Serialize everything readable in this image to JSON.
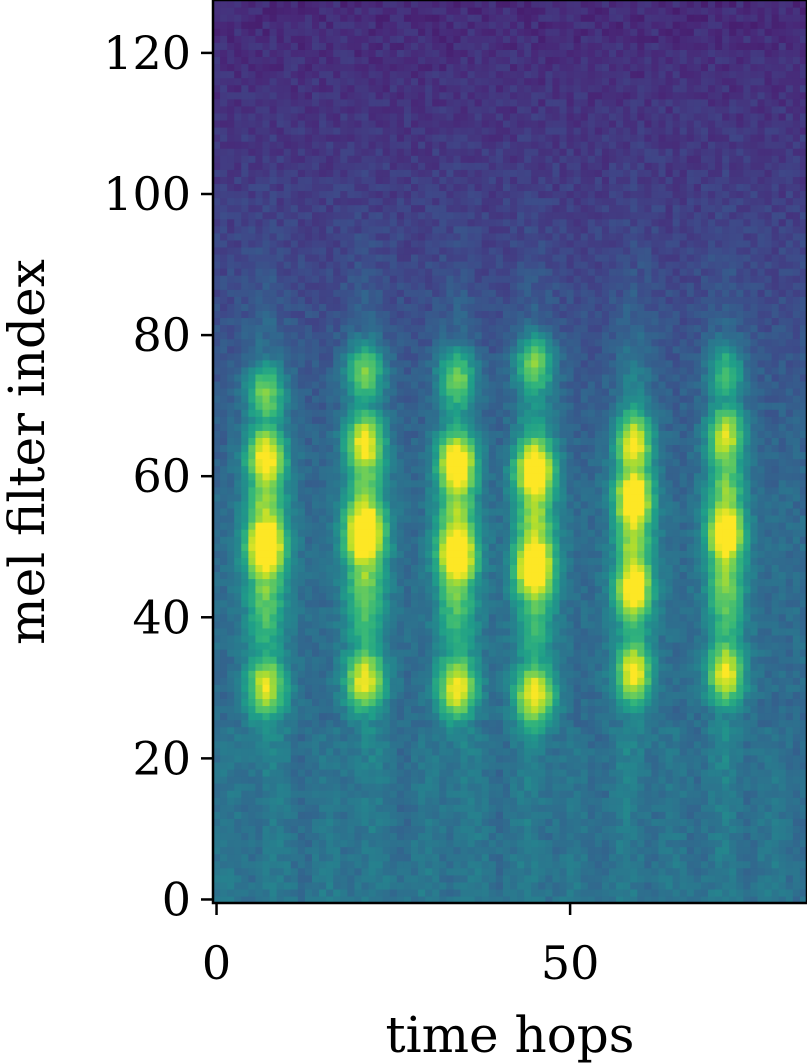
{
  "chart_data": {
    "type": "heatmap",
    "title": "",
    "xlabel": "time hops",
    "ylabel": "mel filter index",
    "xlim": [
      -0.5,
      83.5
    ],
    "ylim": [
      -0.5,
      127.5
    ],
    "x_ticks": [
      0,
      50
    ],
    "y_ticks": [
      0,
      20,
      40,
      60,
      80,
      100,
      120
    ],
    "x_tick_labels": [
      "0",
      "50"
    ],
    "y_tick_labels": [
      "0",
      "20",
      "40",
      "60",
      "80",
      "100",
      "120"
    ],
    "grid": false,
    "legend": "none",
    "colormap": "viridis",
    "n_time_hops": 84,
    "n_mel_filters": 128,
    "value_range": [
      0,
      1
    ],
    "colors": {
      "viridis_stops": [
        "#440154",
        "#482878",
        "#3e4989",
        "#31688e",
        "#26828e",
        "#1f9e89",
        "#35b779",
        "#6ece58",
        "#b5de2b",
        "#fde725"
      ]
    },
    "bursts": [
      {
        "center": 7,
        "width": 2.8,
        "peaks": [
          {
            "mel": 30,
            "value": 0.9
          },
          {
            "mel": 50,
            "value": 0.92
          },
          {
            "mel": 63,
            "value": 0.88
          },
          {
            "mel": 72,
            "value": 0.78
          }
        ]
      },
      {
        "center": 21,
        "width": 2.8,
        "peaks": [
          {
            "mel": 31,
            "value": 0.93
          },
          {
            "mel": 52,
            "value": 0.95
          },
          {
            "mel": 65,
            "value": 0.88
          },
          {
            "mel": 75,
            "value": 0.8
          }
        ]
      },
      {
        "center": 34,
        "width": 2.8,
        "peaks": [
          {
            "mel": 30,
            "value": 0.95
          },
          {
            "mel": 49,
            "value": 0.92
          },
          {
            "mel": 62,
            "value": 0.95
          },
          {
            "mel": 74,
            "value": 0.8
          }
        ]
      },
      {
        "center": 45,
        "width": 2.8,
        "peaks": [
          {
            "mel": 29,
            "value": 0.98
          },
          {
            "mel": 47,
            "value": 0.95
          },
          {
            "mel": 61,
            "value": 0.98
          },
          {
            "mel": 76,
            "value": 0.82
          }
        ]
      },
      {
        "center": 59,
        "width": 2.6,
        "peaks": [
          {
            "mel": 32,
            "value": 0.93
          },
          {
            "mel": 44,
            "value": 0.85
          },
          {
            "mel": 57,
            "value": 0.92
          },
          {
            "mel": 65,
            "value": 0.88
          }
        ]
      },
      {
        "center": 72,
        "width": 2.6,
        "peaks": [
          {
            "mel": 32,
            "value": 0.93
          },
          {
            "mel": 52,
            "value": 0.85
          },
          {
            "mel": 66,
            "value": 0.82
          },
          {
            "mel": 75,
            "value": 0.7
          }
        ]
      }
    ]
  }
}
